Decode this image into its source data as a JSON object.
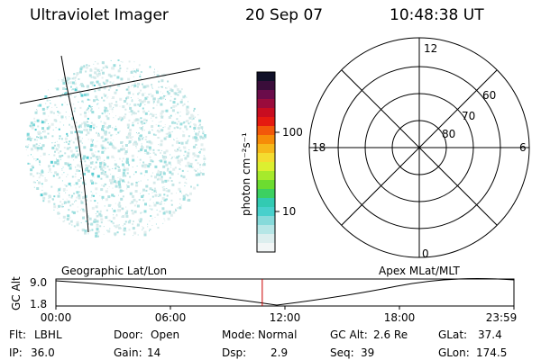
{
  "header": {
    "title": "Ultraviolet Imager",
    "date": "20 Sep 07",
    "time": "10:48:38 UT"
  },
  "colorbar": {
    "unit_label": "photon cm⁻²s⁻¹",
    "ticks": [
      "100",
      "10"
    ],
    "colors": [
      "#101028",
      "#3a0d3a",
      "#6a0c4a",
      "#9a0c3c",
      "#c80d20",
      "#e51a10",
      "#f2580a",
      "#f68c08",
      "#f6b81a",
      "#f4dc30",
      "#dcef30",
      "#a6ea2c",
      "#6cdc30",
      "#3cd060",
      "#32cab2",
      "#48d0cc",
      "#86dada",
      "#b6e6e6",
      "#dceeee",
      "#f2f6f6"
    ]
  },
  "polar_grid": {
    "mlt_labels": [
      "12",
      "18",
      "6",
      "0"
    ],
    "lat_labels": [
      "60",
      "70",
      "80"
    ]
  },
  "timeline": {
    "left_label": "Geographic Lat/Lon",
    "right_label": "Apex MLat/MLT",
    "yaxis_title": "GC Alt",
    "ytick_top": "9.0",
    "ytick_bottom": "1.8",
    "xticks": [
      "00:00",
      "06:00",
      "12:00",
      "18:00",
      "23:59"
    ],
    "current_time_fraction": 0.4505,
    "cursor_color": "#cc0000"
  },
  "info": {
    "filter_label": "Flt:",
    "filter_value": "LBHL",
    "door_label": "Door:",
    "door_value": "Open",
    "mode_label": "Mode:",
    "mode_value": "Normal",
    "gcalt_label": "GC Alt:",
    "gcalt_value": "2.6 Re",
    "glat_label": "GLat:",
    "glat_value": "37.4",
    "ip_label": "IP:",
    "ip_value": "36.0",
    "gain_label": "Gain:",
    "gain_value": "14",
    "dsp_label": "Dsp:",
    "dsp_value": "2.9",
    "seq_label": "Seq:",
    "seq_value": "39",
    "glon_label": "GLon:",
    "glon_value": "174.5"
  }
}
